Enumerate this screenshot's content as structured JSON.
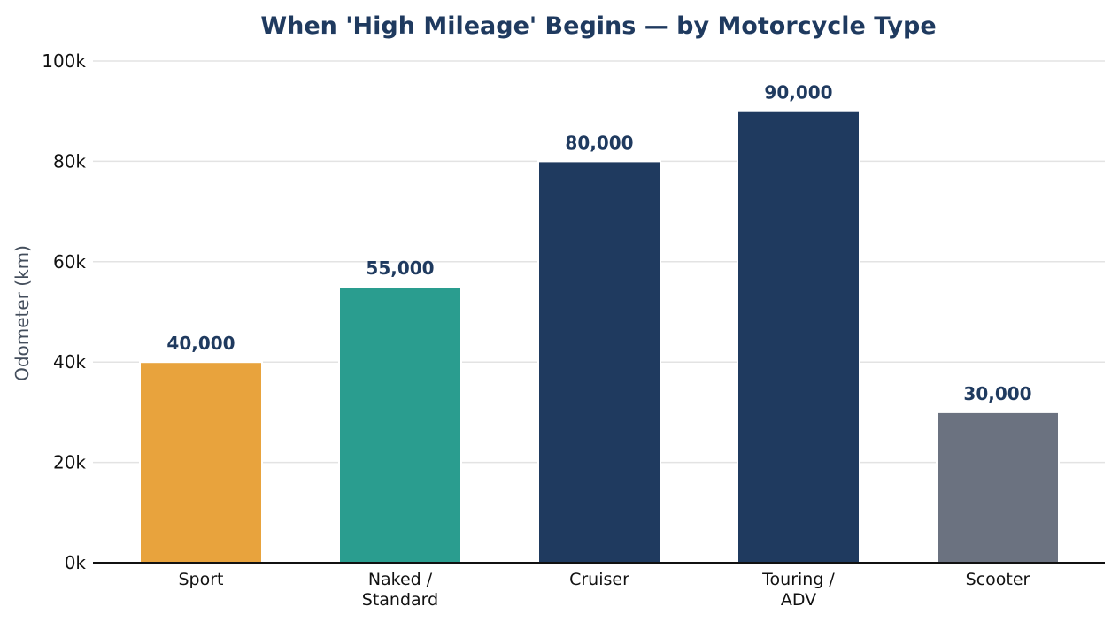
{
  "chart_data": {
    "type": "bar",
    "title": "When 'High Mileage' Begins — by Motorcycle Type",
    "xlabel": "",
    "ylabel": "Odometer (km)",
    "ylim": [
      0,
      100000
    ],
    "yticks": [
      0,
      20000,
      40000,
      60000,
      80000,
      100000
    ],
    "ytick_labels": [
      "0k",
      "20k",
      "40k",
      "60k",
      "80k",
      "100k"
    ],
    "categories": [
      [
        "Sport"
      ],
      [
        "Naked /",
        "Standard"
      ],
      [
        "Cruiser"
      ],
      [
        "Touring /",
        "ADV"
      ],
      [
        "Scooter"
      ]
    ],
    "values": [
      40000,
      55000,
      80000,
      90000,
      30000
    ],
    "value_labels": [
      "40,000",
      "55,000",
      "80,000",
      "90,000",
      "30,000"
    ],
    "colors": [
      "#e8a33d",
      "#2a9d8f",
      "#1f3a5f",
      "#1f3a5f",
      "#6b7280"
    ],
    "grid": true,
    "legend": "none"
  }
}
